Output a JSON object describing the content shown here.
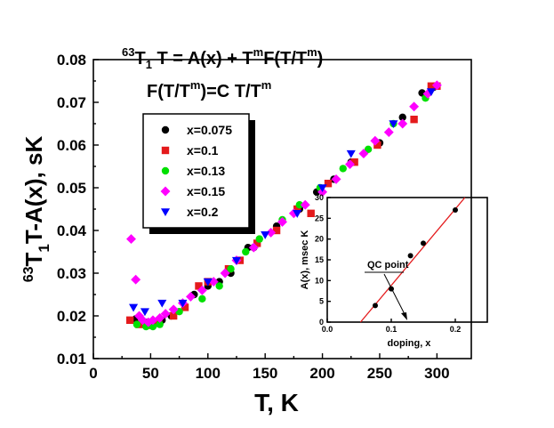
{
  "chart_data": [
    {
      "type": "scatter",
      "name": "main",
      "title_lines": {
        "line1": {
          "prefix_sup": "63",
          "a": "T",
          "sub": "1",
          "b": " T = A(x) + T",
          "sup": "m",
          "c": "F(T/T",
          "sup2": "m",
          "d": ")"
        },
        "line2": {
          "a": "F(T/T",
          "sup": "m",
          "b": ")=C T/T",
          "sup2": "m"
        }
      },
      "xlabel": "T, K",
      "ylabel": {
        "prefix_sup": "63",
        "a": "T",
        "sub": "1",
        "b": "T-A(x), sK"
      },
      "xlim": [
        0,
        330
      ],
      "ylim": [
        0.01,
        0.08
      ],
      "xticks": [
        "0",
        "50",
        "100",
        "150",
        "200",
        "250",
        "300"
      ],
      "yticks": [
        "0.01",
        "0.02",
        "0.03",
        "0.04",
        "0.05",
        "0.06",
        "0.07",
        "0.08"
      ],
      "series": [
        {
          "name": "x=0.075",
          "marker": "circle",
          "color": "#000000",
          "x": [
            37,
            47,
            55,
            60,
            68,
            88,
            100,
            110,
            120,
            135,
            140,
            160,
            180,
            195,
            210,
            225,
            250,
            270,
            287,
            297
          ],
          "y": [
            0.0193,
            0.0185,
            0.0183,
            0.019,
            0.02,
            0.025,
            0.027,
            0.028,
            0.03,
            0.036,
            0.036,
            0.041,
            0.045,
            0.049,
            0.052,
            0.056,
            0.0605,
            0.0665,
            0.0722,
            0.0735
          ]
        },
        {
          "name": "x=0.1",
          "marker": "square",
          "color": "#e41a1c",
          "x": [
            32,
            40,
            48,
            57,
            70,
            80,
            92,
            100,
            118,
            128,
            143,
            160,
            178,
            190,
            205,
            228,
            248,
            280,
            295,
            300
          ],
          "y": [
            0.019,
            0.018,
            0.0178,
            0.0185,
            0.02,
            0.022,
            0.027,
            0.028,
            0.031,
            0.033,
            0.037,
            0.04,
            0.045,
            0.044,
            0.051,
            0.056,
            0.06,
            0.066,
            0.0738,
            0.0738
          ]
        },
        {
          "name": "x=0.13",
          "marker": "circle",
          "color": "#00e000",
          "x": [
            38,
            46,
            52,
            58,
            75,
            95,
            110,
            120,
            133,
            145,
            165,
            180,
            198,
            218,
            240,
            262,
            290
          ],
          "y": [
            0.018,
            0.0175,
            0.0175,
            0.018,
            0.021,
            0.024,
            0.027,
            0.031,
            0.035,
            0.038,
            0.0425,
            0.046,
            0.05,
            0.0545,
            0.059,
            0.065,
            0.071
          ]
        },
        {
          "name": "x=0.15",
          "marker": "diamond",
          "color": "#ff00ff",
          "x": [
            33,
            37,
            40,
            43,
            48,
            52,
            58,
            63,
            70,
            78,
            85,
            95,
            105,
            115,
            125,
            140,
            155,
            165,
            175,
            185,
            200,
            212,
            224,
            236,
            246,
            258,
            270,
            280,
            292,
            300
          ],
          "y": [
            0.038,
            0.0285,
            0.02,
            0.019,
            0.0185,
            0.019,
            0.0195,
            0.0205,
            0.0215,
            0.023,
            0.0245,
            0.026,
            0.028,
            0.03,
            0.033,
            0.036,
            0.0395,
            0.042,
            0.044,
            0.046,
            0.049,
            0.052,
            0.0555,
            0.058,
            0.061,
            0.063,
            0.065,
            0.069,
            0.072,
            0.074
          ]
        },
        {
          "name": "x=0.2",
          "marker": "triangle-down",
          "color": "#0000ff",
          "x": [
            35,
            45,
            60,
            78,
            100,
            125,
            150,
            178,
            200,
            225,
            262,
            295
          ],
          "y": [
            0.022,
            0.021,
            0.023,
            0.023,
            0.028,
            0.033,
            0.039,
            0.044,
            0.05,
            0.058,
            0.065,
            0.0725
          ]
        }
      ]
    },
    {
      "type": "scatter",
      "name": "inset",
      "xlabel": "doping, x",
      "ylabel": "A(x), msec K",
      "xlim": [
        0,
        0.25
      ],
      "ylim": [
        0,
        30
      ],
      "xticks": [
        "0.0",
        "0.1",
        "0.2"
      ],
      "yticks": [
        "0",
        "5",
        "10",
        "15",
        "20",
        "25",
        "30"
      ],
      "annotation": "QC point",
      "points": {
        "x": [
          0.075,
          0.1,
          0.13,
          0.15,
          0.2
        ],
        "y": [
          4,
          8,
          16,
          19,
          27
        ]
      },
      "fit_line": {
        "x": [
          0.052,
          0.215
        ],
        "y": [
          0,
          30
        ],
        "color": "#e41a1c"
      }
    }
  ]
}
